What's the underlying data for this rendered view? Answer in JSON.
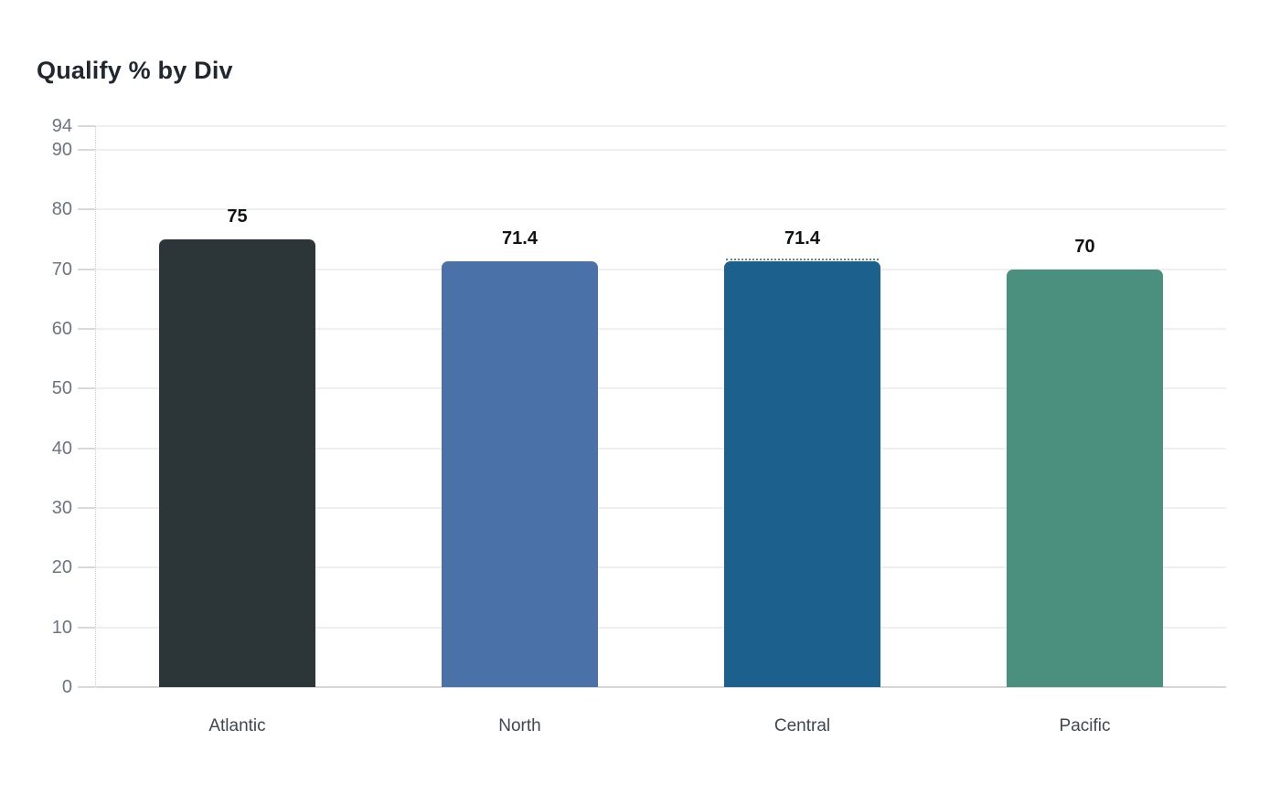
{
  "chart_data": {
    "type": "bar",
    "title": "Qualify % by Div",
    "categories": [
      "Atlantic",
      "North",
      "Central",
      "Pacific"
    ],
    "values": [
      75,
      71.4,
      71.4,
      70
    ],
    "value_labels": [
      "75",
      "71.4",
      "71.4",
      "70"
    ],
    "bar_colors": [
      "#2c3638",
      "#4b72a8",
      "#1c618e",
      "#4b8f7e"
    ],
    "dotted_top_edge": [
      false,
      false,
      true,
      false
    ],
    "xlabel": "",
    "ylabel": "",
    "ylim": [
      0,
      94
    ],
    "yticks": [
      94,
      90,
      80,
      70,
      60,
      50,
      40,
      30,
      20,
      10,
      0
    ],
    "grid": "horizontal",
    "legend": "none",
    "colors": {
      "title_text": "#21272e",
      "tick_label_text": "#6b7480",
      "category_label_text": "#3d4750",
      "value_label_text": "#101214",
      "gridline": "#efefef",
      "baseline": "#d6d6d6",
      "background": "#ffffff"
    }
  }
}
